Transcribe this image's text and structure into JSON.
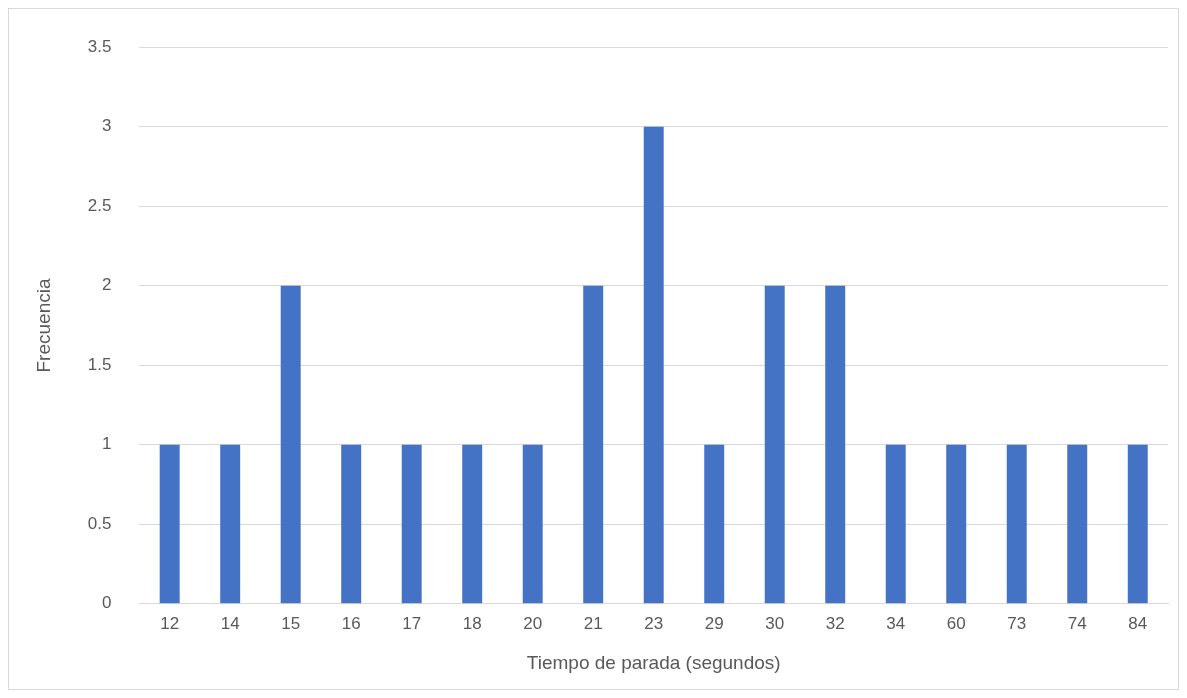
{
  "chart_data": {
    "type": "bar",
    "xlabel": "Tiempo de parada (segundos)",
    "ylabel": "Frecuencia",
    "categories": [
      "12",
      "14",
      "15",
      "16",
      "17",
      "18",
      "20",
      "21",
      "23",
      "29",
      "30",
      "32",
      "34",
      "60",
      "73",
      "74",
      "84"
    ],
    "values": [
      1,
      1,
      2,
      1,
      1,
      1,
      1,
      2,
      3,
      1,
      2,
      2,
      1,
      1,
      1,
      1,
      1
    ],
    "color": "#4472c4",
    "ylim": [
      0,
      3.5
    ],
    "yticks": [
      0,
      0.5,
      1,
      1.5,
      2,
      2.5,
      3,
      3.5
    ],
    "grid": "y",
    "legend": false
  }
}
